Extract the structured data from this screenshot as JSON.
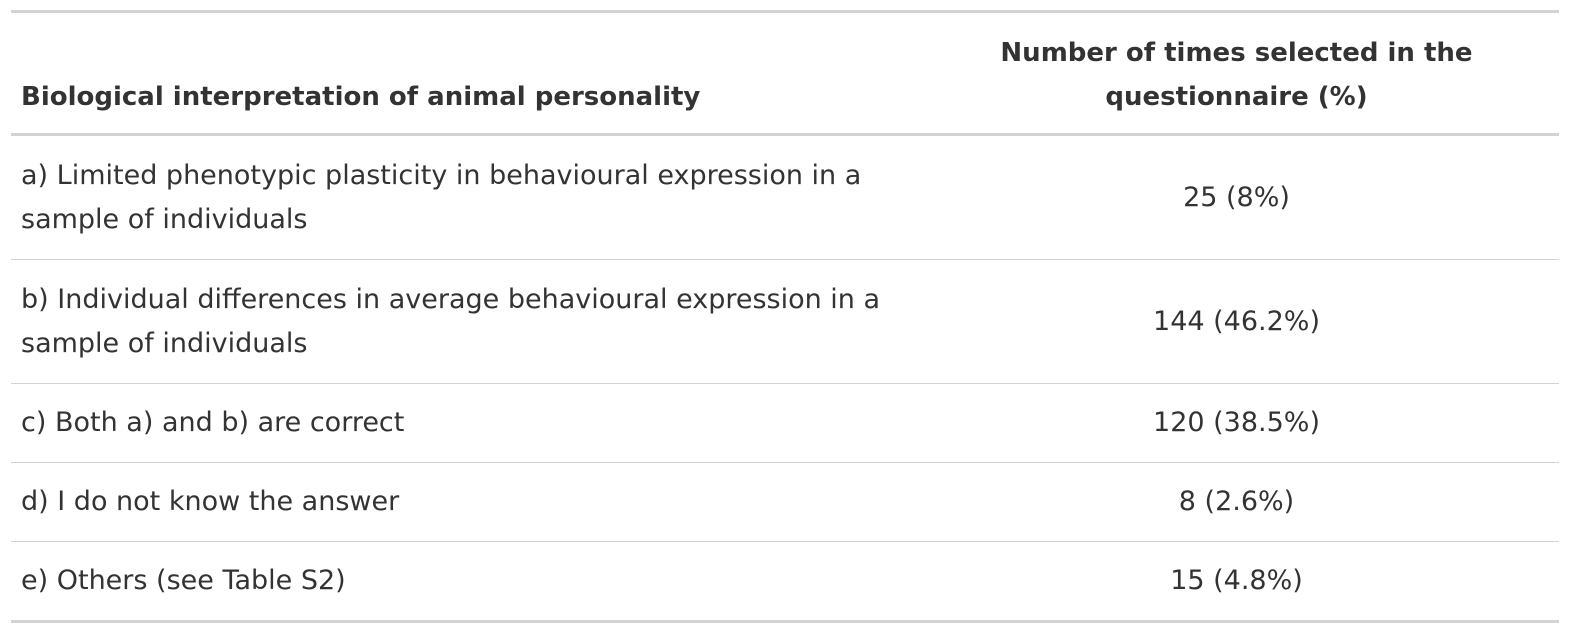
{
  "table": {
    "headers": [
      "Biological interpretation of animal personality",
      "Number of times selected in the questionnaire (%)"
    ],
    "rows": [
      {
        "label": "a) Limited phenotypic plasticity in behavioural expression in a sample of individuals",
        "value": "25 (8%)"
      },
      {
        "label": "b) Individual differences in average behavioural expression in a sample of individuals",
        "value": "144 (46.2%)"
      },
      {
        "label": "c) Both a) and b) are correct",
        "value": "120 (38.5%)"
      },
      {
        "label": "d) I do not know the answer",
        "value": "8 (2.6%)"
      },
      {
        "label": "e) Others (see Table S2)",
        "value": "15 (4.8%)"
      }
    ]
  },
  "colors": {
    "rule": "#d3d3d3",
    "text": "#333333"
  }
}
